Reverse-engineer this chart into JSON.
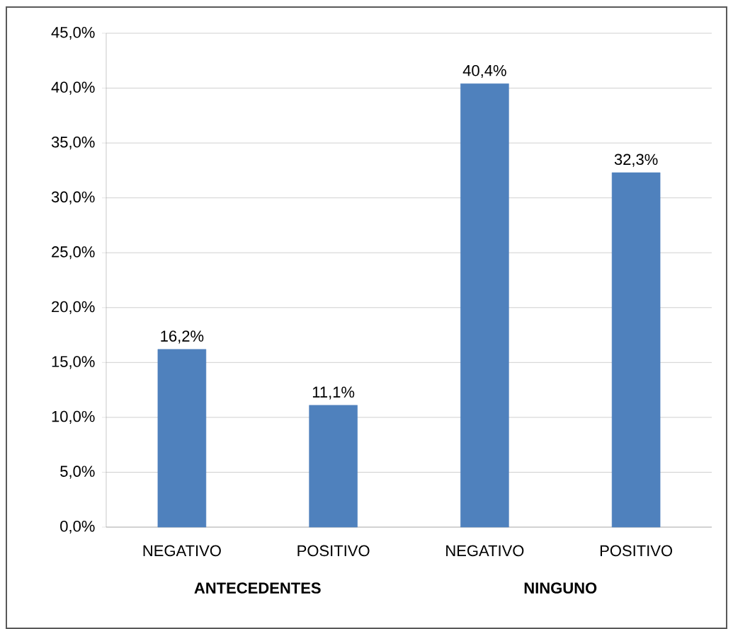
{
  "chart_data": {
    "type": "bar",
    "categories": [
      "NEGATIVO",
      "POSITIVO",
      "NEGATIVO",
      "POSITIVO"
    ],
    "values": [
      16.2,
      11.1,
      40.4,
      32.3
    ],
    "value_labels": [
      "16,2%",
      "11,1%",
      "40,4%",
      "32,3%"
    ],
    "color": "#4f81bd",
    "ylim": [
      0,
      45
    ],
    "yticks": [
      {
        "value": 0,
        "label": "0,0%"
      },
      {
        "value": 5,
        "label": "5,0%"
      },
      {
        "value": 10,
        "label": "10,0%"
      },
      {
        "value": 15,
        "label": "15,0%"
      },
      {
        "value": 20,
        "label": "20,0%"
      },
      {
        "value": 25,
        "label": "25,0%"
      },
      {
        "value": 30,
        "label": "30,0%"
      },
      {
        "value": 35,
        "label": "35,0%"
      },
      {
        "value": 40,
        "label": "40,0%"
      },
      {
        "value": 45,
        "label": "45,0%"
      }
    ],
    "grid": "y",
    "annotations": [
      "ANTECEDENTES",
      "NINGUNO"
    ]
  }
}
